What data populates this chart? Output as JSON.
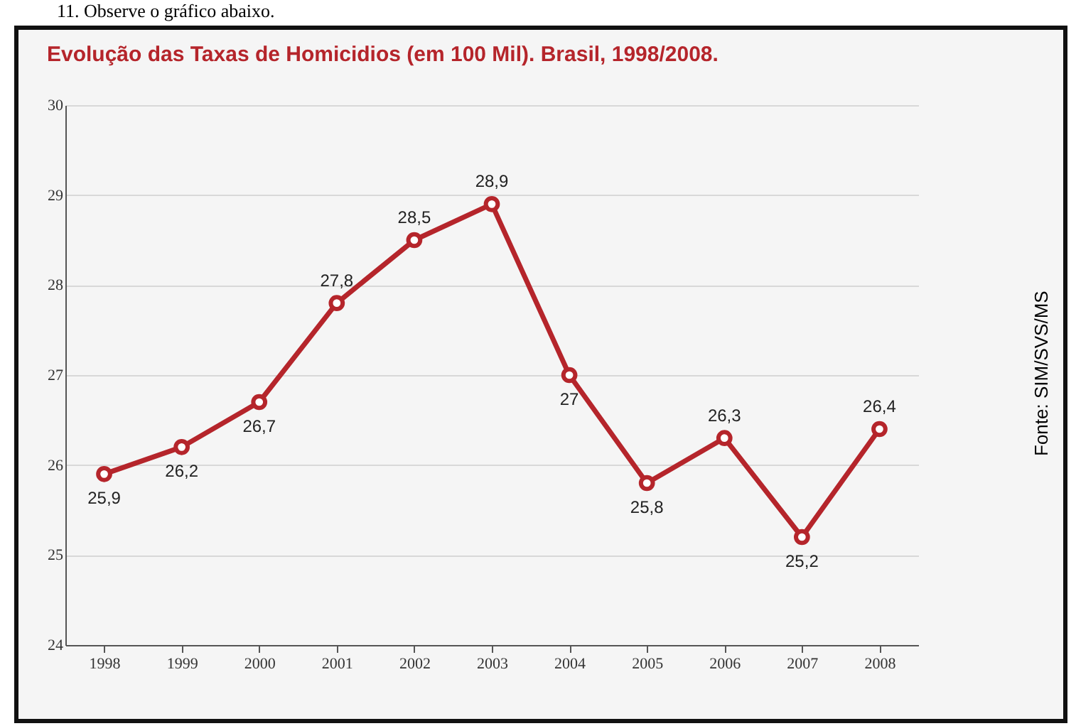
{
  "chart_data": {
    "type": "line",
    "title": "Evolução das Taxas de Homicidios (em 100 Mil). Brasil, 1998/2008.",
    "categories": [
      "1998",
      "1999",
      "2000",
      "2001",
      "2002",
      "2003",
      "2004",
      "2005",
      "2006",
      "2007",
      "2008"
    ],
    "values": [
      25.9,
      26.2,
      26.7,
      27.8,
      28.5,
      28.9,
      27,
      25.8,
      26.3,
      25.2,
      26.4
    ],
    "value_labels": [
      "25,9",
      "26,2",
      "26,7",
      "27,8",
      "28,5",
      "28,9",
      "27",
      "25,8",
      "26,3",
      "25,2",
      "26,4"
    ],
    "color": "#b5252b",
    "marker": "circle",
    "ylim": [
      24,
      30
    ],
    "yticks": [
      24,
      25,
      26,
      27,
      28,
      29,
      30
    ],
    "grid": "y",
    "annotations": [
      "11. Observe o gráfico abaixo.",
      "Fonte: SIM/SVS/MS"
    ]
  }
}
